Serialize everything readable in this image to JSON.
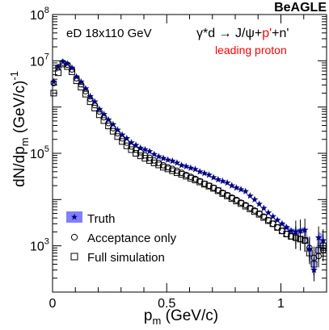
{
  "chart_data": {
    "type": "scatter",
    "brand": "BeAGLE",
    "title": "",
    "annotation_left": "eD 18x110 GeV",
    "annotation_right_parts": [
      "γ*d → J/ψ+",
      "p'",
      "+n'"
    ],
    "annotation_right_highlight_color": "#ff0000",
    "annotation_sub": "leading proton",
    "annotation_sub_color": "#ff0000",
    "xlabel_main": "p",
    "xlabel_sub": "m",
    "xlabel_unit": " (GeV/c)",
    "ylabel_main": "dN/dp",
    "ylabel_sub": "m",
    "ylabel_unit": " (GeV/c)",
    "ylabel_sup": "-1",
    "xlim": [
      0,
      1.2
    ],
    "ylim": [
      100,
      100000000
    ],
    "yscale": "log",
    "x_ticks": [
      {
        "value": 0,
        "label": "0"
      },
      {
        "value": 0.5,
        "label": "0.5"
      },
      {
        "value": 1,
        "label": "1"
      }
    ],
    "y_ticks": [
      {
        "value": 1000,
        "base": "10",
        "exp": "3"
      },
      {
        "value": 100000,
        "base": "10",
        "exp": "5"
      },
      {
        "value": 10000000,
        "base": "10",
        "exp": "7"
      },
      {
        "value": 100000000,
        "base": "10",
        "exp": "8"
      }
    ],
    "legend": {
      "position": "bottom-left",
      "entries": [
        {
          "label": "Truth",
          "marker": "star-band"
        },
        {
          "label": "Acceptance only",
          "marker": "circle"
        },
        {
          "label": "Full simulation",
          "marker": "square"
        }
      ]
    },
    "band_color": "#8080ff",
    "series": [
      {
        "name": "Truth",
        "marker": "star",
        "color": "#000080",
        "x": [
          0.005,
          0.025,
          0.045,
          0.065,
          0.085,
          0.105,
          0.125,
          0.145,
          0.165,
          0.185,
          0.205,
          0.225,
          0.245,
          0.265,
          0.285,
          0.305,
          0.325,
          0.345,
          0.365,
          0.385,
          0.405,
          0.425,
          0.445,
          0.465,
          0.485,
          0.505,
          0.525,
          0.545,
          0.565,
          0.585,
          0.605,
          0.625,
          0.645,
          0.665,
          0.685,
          0.705,
          0.725,
          0.745,
          0.765,
          0.785,
          0.805,
          0.825,
          0.845,
          0.865,
          0.885,
          0.905,
          0.925,
          0.945,
          0.965,
          0.985,
          1.005,
          1.025,
          1.045,
          1.065,
          1.085,
          1.105,
          1.125,
          1.145,
          1.165,
          1.185
        ],
        "y": [
          3500000,
          7300000,
          9500000,
          8600000,
          7000000,
          4500000,
          3500000,
          2500000,
          1700000,
          1300000,
          900000,
          700000,
          530000,
          420000,
          320000,
          250000,
          210000,
          170000,
          150000,
          130000,
          120000,
          110000,
          95000,
          85000,
          78000,
          72000,
          68000,
          62000,
          55000,
          52000,
          48000,
          45000,
          40000,
          37000,
          34000,
          30000,
          27000,
          25000,
          23000,
          20000,
          18000,
          16500,
          15000,
          12000,
          10000,
          8000,
          6500,
          5200,
          4300,
          3600,
          3000,
          2500,
          2100,
          2000,
          2100,
          2200,
          850,
          300,
          1500,
          1300
        ]
      },
      {
        "name": "Acceptance only",
        "marker": "circle",
        "color": "#000000",
        "x": [
          0.005,
          0.025,
          0.045,
          0.065,
          0.085,
          0.105,
          0.125,
          0.145,
          0.165,
          0.185,
          0.205,
          0.225,
          0.245,
          0.265,
          0.285,
          0.305,
          0.325,
          0.345,
          0.365,
          0.385,
          0.405,
          0.425,
          0.445,
          0.465,
          0.485,
          0.505,
          0.525,
          0.545,
          0.565,
          0.585,
          0.605,
          0.625,
          0.645,
          0.665,
          0.685,
          0.705,
          0.725,
          0.745,
          0.765,
          0.785,
          0.805,
          0.825,
          0.845,
          0.865,
          0.885,
          0.905,
          0.925,
          0.945,
          0.965,
          0.985,
          1.005,
          1.025,
          1.045,
          1.065,
          1.085,
          1.105,
          1.125,
          1.145,
          1.165,
          1.185
        ],
        "y": [
          3300000,
          7200000,
          9100000,
          8200000,
          6500000,
          4200000,
          3100000,
          2200000,
          1500000,
          1100000,
          800000,
          600000,
          450000,
          350000,
          270000,
          210000,
          170000,
          140000,
          120000,
          105000,
          90000,
          80000,
          70000,
          62000,
          55000,
          50000,
          46000,
          42000,
          38000,
          34000,
          31000,
          28000,
          25000,
          22000,
          20000,
          18000,
          16000,
          14000,
          12500,
          11000,
          9800,
          8600,
          7600,
          6600,
          5800,
          5000,
          4300,
          3600,
          3000,
          2500,
          2100,
          1800,
          1600,
          1500,
          1400,
          1300,
          900,
          550,
          600,
          800
        ]
      },
      {
        "name": "Full simulation",
        "marker": "square",
        "color": "#000000",
        "x": [
          0.005,
          0.025,
          0.045,
          0.065,
          0.085,
          0.105,
          0.125,
          0.145,
          0.165,
          0.185,
          0.205,
          0.225,
          0.245,
          0.265,
          0.285,
          0.305,
          0.325,
          0.345,
          0.365,
          0.385,
          0.405,
          0.425,
          0.445,
          0.465,
          0.485,
          0.505,
          0.525,
          0.545,
          0.565,
          0.585,
          0.605,
          0.625,
          0.645,
          0.665,
          0.685,
          0.705,
          0.725,
          0.745,
          0.765,
          0.785,
          0.805,
          0.825,
          0.845,
          0.865,
          0.885,
          0.905,
          0.925,
          0.945,
          0.965,
          0.985,
          1.005,
          1.025,
          1.045,
          1.065,
          1.085,
          1.105,
          1.125,
          1.145,
          1.165,
          1.185
        ],
        "y": [
          2000000,
          5500000,
          8500000,
          7500000,
          5800000,
          3700000,
          2700000,
          1900000,
          1300000,
          950000,
          680000,
          510000,
          390000,
          300000,
          230000,
          180000,
          145000,
          120000,
          100000,
          88000,
          78000,
          70000,
          62000,
          56000,
          50000,
          46000,
          42000,
          38000,
          35000,
          32000,
          29000,
          26500,
          24000,
          21500,
          19500,
          17500,
          15500,
          13500,
          12000,
          10500,
          9300,
          8200,
          7200,
          6300,
          5500,
          4800,
          4100,
          3500,
          3000,
          2500,
          2100,
          1800,
          1600,
          1500,
          1400,
          1300,
          700,
          400,
          800,
          1000
        ]
      }
    ],
    "band_series": {
      "x": [
        1.005,
        1.025,
        1.045,
        1.065,
        1.085,
        1.105,
        1.125,
        1.145,
        1.165,
        1.185
      ],
      "low": [
        2700,
        2200,
        1800,
        1700,
        1800,
        1900,
        500,
        200,
        900,
        900
      ],
      "high": [
        3300,
        2800,
        2400,
        2300,
        2400,
        2600,
        1200,
        450,
        2000,
        1800
      ]
    }
  }
}
